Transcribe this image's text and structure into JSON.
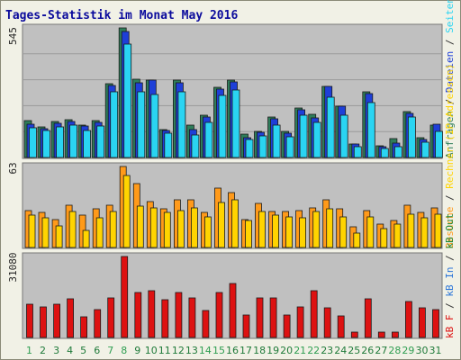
{
  "colors": {
    "background": "#f1f1e6",
    "panel": "#c0c0c0",
    "title": "#0b0b9c",
    "weekday_label": "#1f7a3a",
    "weekend_label": "#2f9e52",
    "hits": "#2e7d5a",
    "files": "#1e3fd8",
    "pages": "#2ad4f2",
    "visits": "#ff9a1a",
    "sites": "#ffd400",
    "kbin": "#2a74d8",
    "kbout": "#1f8a3c",
    "kbf": "#dd1111"
  },
  "chart_data": {
    "type": "bar",
    "title": "Tages-Statistik im Monat May 2016",
    "categories": [
      "1",
      "2",
      "3",
      "4",
      "5",
      "6",
      "7",
      "8",
      "9",
      "10",
      "11",
      "12",
      "13",
      "14",
      "15",
      "16",
      "17",
      "18",
      "19",
      "20",
      "21",
      "22",
      "23",
      "24",
      "25",
      "26",
      "27",
      "28",
      "29",
      "30",
      "31"
    ],
    "weekend_days": [
      "1",
      "7",
      "8",
      "14",
      "15",
      "21",
      "22",
      "28",
      "29"
    ],
    "panels": [
      {
        "id": "requests",
        "ymax_label": "545",
        "ymax": 545,
        "legend": [
          {
            "text": "Anfragen",
            "color": "#2e7d5a"
          },
          {
            "text": " / ",
            "color": "#333333"
          },
          {
            "text": "Dateien",
            "color": "#1e3fd8"
          },
          {
            "text": " / ",
            "color": "#333333"
          },
          {
            "text": "Seiten",
            "color": "#2ad4f2"
          }
        ],
        "series": [
          {
            "name": "Anfragen",
            "color": "#2e7d5a",
            "values": [
              154,
              129,
              151,
              159,
              138,
              156,
              312,
              545,
              328,
              325,
              119,
              326,
              136,
              178,
              296,
              324,
              98,
              111,
              170,
              108,
              207,
              180,
              298,
              216,
              58,
              278,
              50,
              78,
              194,
              84,
              138
            ]
          },
          {
            "name": "Dateien",
            "color": "#1e3fd8",
            "values": [
              140,
              123,
              145,
              152,
              132,
              149,
              303,
              531,
              315,
              325,
              112,
              313,
              119,
              172,
              287,
              318,
              85,
              105,
              163,
              101,
              202,
              166,
              298,
              214,
              57,
              269,
              47,
              61,
              186,
              76,
              139
            ]
          },
          {
            "name": "Seiten",
            "color": "#2ad4f2",
            "values": [
              126,
              112,
              129,
              136,
              115,
              133,
              276,
              475,
              275,
              264,
              104,
              278,
              96,
              148,
              260,
              285,
              76,
              90,
              137,
              88,
              177,
              149,
              253,
              179,
              44,
              231,
              36,
              44,
              169,
              65,
              111
            ]
          }
        ]
      },
      {
        "id": "visits",
        "ymax_label": "63",
        "ymax": 63,
        "legend": [
          {
            "text": "Besuche",
            "color": "#ff9a1a"
          },
          {
            "text": " / ",
            "color": "#333333"
          },
          {
            "text": "Rechner (IP-Adressen)",
            "color": "#ffd400"
          }
        ],
        "series": [
          {
            "name": "Besuche",
            "color": "#ff9a1a",
            "values": [
              29,
              27,
              22,
              33,
              25,
              30,
              33,
              63,
              50,
              36,
              30,
              37,
              37,
              27,
              46,
              43,
              22,
              34,
              28,
              28,
              29,
              31,
              37,
              30,
              16,
              29,
              18,
              21,
              33,
              27,
              31
            ]
          },
          {
            "name": "Rechner (IP-Adressen)",
            "color": "#ffd400",
            "values": [
              25,
              23,
              17,
              28,
              13,
              23,
              28,
              56,
              32,
              31,
              27,
              29,
              31,
              24,
              35,
              37,
              21,
              28,
              25,
              24,
              23,
              28,
              30,
              24,
              11,
              24,
              15,
              18,
              26,
              23,
              26
            ]
          }
        ]
      },
      {
        "id": "kbytes",
        "ymax_label": "31080",
        "ymax": 31080,
        "legend": [
          {
            "text": "kB F",
            "color": "#dd1111"
          },
          {
            "text": " / ",
            "color": "#333333"
          },
          {
            "text": "kB In",
            "color": "#2a74d8"
          },
          {
            "text": " / ",
            "color": "#333333"
          },
          {
            "text": "kB Out",
            "color": "#1f8a3c"
          }
        ],
        "series": [
          {
            "name": "kB F",
            "color": "#dd1111",
            "values": [
              12800,
              11700,
              12900,
              15000,
              7800,
              10700,
              15300,
              31080,
              17200,
              17900,
              14600,
              17300,
              15100,
              10300,
              17200,
              20600,
              8700,
              15200,
              15200,
              8800,
              11800,
              17800,
              11300,
              8300,
              1900,
              15000,
              2200,
              2200,
              13700,
              11300,
              10600
            ]
          },
          {
            "name": "kB In",
            "color": "#2a74d8",
            "values": [
              0,
              0,
              0,
              0,
              0,
              0,
              0,
              0,
              0,
              0,
              0,
              0,
              0,
              0,
              0,
              0,
              0,
              0,
              0,
              0,
              0,
              0,
              0,
              0,
              0,
              0,
              0,
              0,
              0,
              0,
              0
            ]
          },
          {
            "name": "kB Out",
            "color": "#1f8a3c",
            "values": [
              0,
              0,
              0,
              0,
              0,
              0,
              0,
              0,
              0,
              0,
              0,
              0,
              0,
              0,
              0,
              0,
              0,
              0,
              0,
              0,
              0,
              0,
              0,
              0,
              0,
              0,
              0,
              0,
              0,
              0,
              0
            ]
          }
        ]
      }
    ]
  }
}
